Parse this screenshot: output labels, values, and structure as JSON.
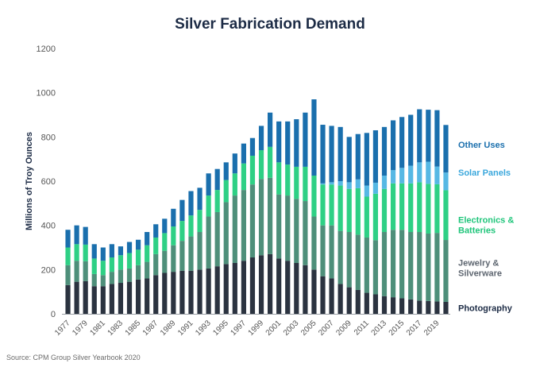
{
  "source": "Source: CPM Group Silver Yearbook 2020",
  "chart_data": {
    "type": "bar",
    "stacked": true,
    "title": "Silver Fabrication Demand",
    "xlabel": "",
    "ylabel": "Millions of Troy Ounces",
    "ylim": [
      0,
      1200
    ],
    "yticks": [
      0,
      200,
      400,
      600,
      800,
      1000,
      1200
    ],
    "grid": false,
    "legend_position": "right, labels beside top of stack",
    "categories": [
      "1977",
      "1978",
      "1979",
      "1980",
      "1981",
      "1982",
      "1983",
      "1984",
      "1985",
      "1986",
      "1987",
      "1988",
      "1989",
      "1990",
      "1991",
      "1992",
      "1993",
      "1994",
      "1995",
      "1996",
      "1997",
      "1998",
      "1999",
      "2000",
      "2001",
      "2002",
      "2003",
      "2004",
      "2005",
      "2006",
      "2007",
      "2008",
      "2009",
      "2010",
      "2011",
      "2012",
      "2013",
      "2014",
      "2015",
      "2016",
      "2017",
      "2018",
      "2019",
      "2020"
    ],
    "xtick_labels": [
      "1977",
      "1979",
      "1981",
      "1983",
      "1985",
      "1987",
      "1989",
      "1991",
      "1993",
      "1995",
      "1997",
      "1999",
      "2001",
      "2003",
      "2005",
      "2007",
      "2009",
      "2011",
      "2013",
      "2015",
      "2017",
      "2019"
    ],
    "series": [
      {
        "name": "Photography",
        "color": "#2b3340",
        "values": [
          130,
          145,
          148,
          125,
          125,
          135,
          140,
          145,
          155,
          160,
          175,
          185,
          190,
          195,
          195,
          200,
          205,
          215,
          225,
          230,
          240,
          255,
          265,
          270,
          250,
          240,
          230,
          220,
          200,
          170,
          160,
          135,
          120,
          108,
          95,
          88,
          80,
          75,
          70,
          65,
          60,
          58,
          56,
          54
        ]
      },
      {
        "name": "Jewelry & Silverware",
        "color": "#4e8f7a",
        "values": [
          90,
          95,
          90,
          55,
          50,
          55,
          60,
          60,
          65,
          75,
          95,
          100,
          120,
          135,
          155,
          170,
          235,
          245,
          280,
          305,
          320,
          330,
          345,
          345,
          290,
          295,
          290,
          290,
          240,
          230,
          240,
          240,
          250,
          250,
          250,
          245,
          290,
          305,
          310,
          305,
          310,
          305,
          310,
          280
        ]
      },
      {
        "name": "Electronics & Batteries",
        "color": "#2ed085",
        "values": [
          80,
          75,
          75,
          70,
          65,
          65,
          65,
          70,
          70,
          75,
          75,
          80,
          85,
          90,
          95,
          100,
          95,
          100,
          100,
          100,
          120,
          130,
          130,
          140,
          145,
          140,
          145,
          155,
          185,
          185,
          185,
          205,
          195,
          210,
          185,
          210,
          195,
          210,
          210,
          220,
          225,
          225,
          220,
          225
        ]
      },
      {
        "name": "Solar Panels",
        "color": "#56b8e4",
        "values": [
          0,
          0,
          0,
          0,
          0,
          0,
          0,
          0,
          0,
          0,
          0,
          0,
          0,
          0,
          0,
          0,
          0,
          0,
          0,
          0,
          0,
          0,
          0,
          0,
          0,
          0,
          0,
          0,
          0,
          5,
          10,
          20,
          30,
          40,
          50,
          50,
          60,
          60,
          70,
          80,
          90,
          100,
          80,
          80
        ]
      },
      {
        "name": "Other Uses",
        "color": "#1a6fad",
        "values": [
          80,
          85,
          80,
          65,
          60,
          60,
          40,
          50,
          45,
          60,
          60,
          65,
          80,
          95,
          110,
          100,
          100,
          95,
          80,
          90,
          90,
          80,
          110,
          155,
          185,
          195,
          215,
          245,
          345,
          265,
          255,
          245,
          205,
          205,
          238,
          237,
          220,
          225,
          230,
          230,
          240,
          235,
          255,
          215
        ]
      }
    ]
  }
}
